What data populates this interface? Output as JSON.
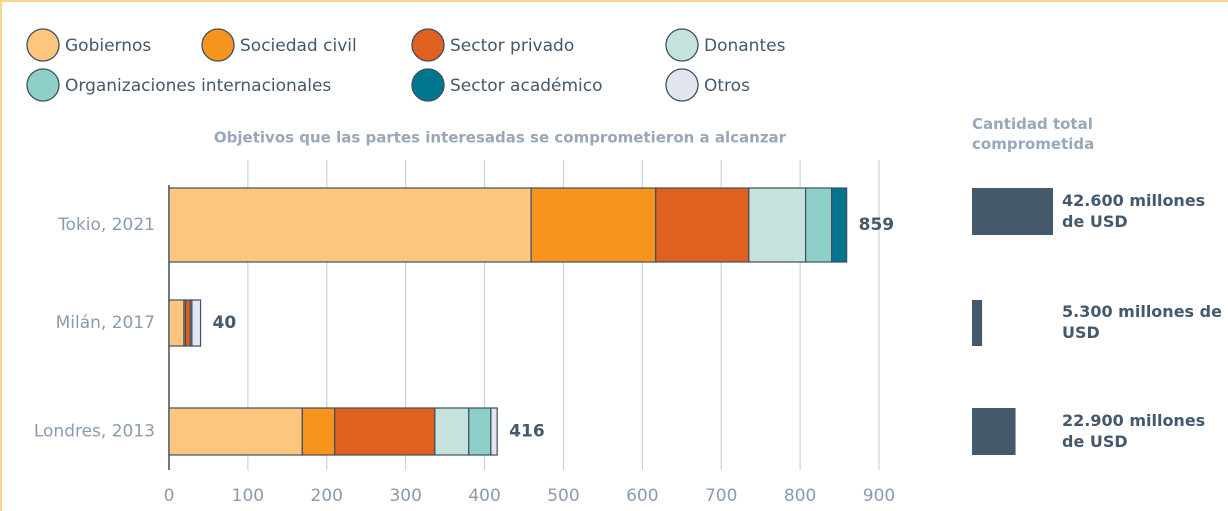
{
  "chart_data": [
    {
      "type": "bar",
      "orientation": "horizontal",
      "stacked": true,
      "title": "Objetivos que las partes interesadas se comprometieron a alcanzar",
      "categories": [
        "Tokio, 2021",
        "Milán, 2017",
        "Londres, 2013"
      ],
      "series": [
        {
          "name": "Gobiernos",
          "color": "#fec57e",
          "values": [
            459,
            19,
            169
          ]
        },
        {
          "name": "Sociedad civil",
          "color": "#f7941d",
          "values": [
            158,
            2,
            41
          ]
        },
        {
          "name": "Sector privado",
          "color": "#e0611f",
          "values": [
            118,
            6,
            127
          ]
        },
        {
          "name": "Donantes",
          "color": "#c5e3dc",
          "values": [
            72,
            2,
            43
          ]
        },
        {
          "name": "Organizaciones internacionales",
          "color": "#8ecfc9",
          "values": [
            33,
            0,
            28
          ]
        },
        {
          "name": "Sector académico",
          "color": "#00758f",
          "values": [
            19,
            0,
            0
          ]
        },
        {
          "name": "Otros",
          "color": "#e2e6ef",
          "values": [
            0,
            11,
            8
          ]
        }
      ],
      "totals": [
        859,
        40,
        416
      ],
      "xlim": [
        0,
        900
      ],
      "xticks": [
        0,
        100,
        200,
        300,
        400,
        500,
        600,
        700,
        800,
        900
      ],
      "grid": true
    },
    {
      "type": "bar",
      "orientation": "horizontal",
      "title": "Cantidad total comprometida",
      "values": [
        42600,
        5300,
        22900
      ],
      "value_labels": [
        "42.600 millones de USD",
        "5.300 millones de USD",
        "22.900 millones de USD"
      ],
      "color": "#44596b"
    }
  ]
}
